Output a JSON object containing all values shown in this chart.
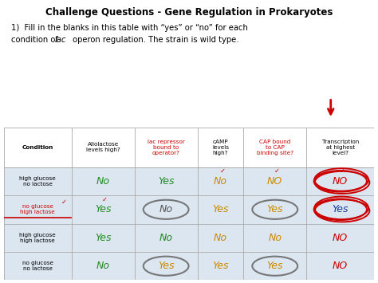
{
  "title": "Challenge Questions - Gene Regulation in Prokaryotes",
  "subtitle1": "1)  Fill in the blanks in this table with “yes” or “no” for each",
  "subtitle2_plain1": "condition of ",
  "subtitle2_italic": "lac",
  "subtitle2_plain2": " operon regulation. The strain is wild type.",
  "bg_color": "#dce6f0",
  "white": "#ffffff",
  "col_headers": [
    "Condition",
    "Allolactose\nlevels high?",
    "lac repressor\nbound to\noperator?",
    "cAMP\nlevels\nhigh?",
    "CAP bound\nto CAP\nbinding site?",
    "Transcription\nat highest\nlevel?"
  ],
  "col_colors": [
    "black",
    "black",
    "#cc0000",
    "black",
    "#cc0000",
    "black"
  ],
  "col_widths": [
    1.4,
    1.3,
    1.3,
    0.95,
    1.3,
    1.4
  ],
  "rows": [
    {
      "condition": "high glucose\nno lactose",
      "condition_color": "black",
      "condition_underline": false,
      "values": [
        "No",
        "Yes",
        "No",
        "NO",
        "NO"
      ],
      "colors": [
        "#228B22",
        "#228B22",
        "#cc8800",
        "#cc8800",
        "#cc0000"
      ],
      "gray_circle": [
        false,
        false,
        false,
        false,
        false
      ],
      "red_circle": [
        false,
        false,
        false,
        false,
        true
      ],
      "red_check": [
        false,
        false,
        true,
        true,
        true
      ]
    },
    {
      "condition": "no glucose\nhigh lactose",
      "condition_color": "#cc0000",
      "condition_underline": true,
      "values": [
        "Yes",
        "No",
        "Yes",
        "Yes",
        "Yes"
      ],
      "colors": [
        "#228B22",
        "#555555",
        "#cc8800",
        "#cc8800",
        "#1a3a99"
      ],
      "gray_circle": [
        false,
        true,
        false,
        true,
        false
      ],
      "red_circle": [
        false,
        false,
        false,
        false,
        true
      ],
      "red_check": [
        true,
        false,
        false,
        false,
        false
      ]
    },
    {
      "condition": "high glucose\nhigh lactose",
      "condition_color": "black",
      "condition_underline": false,
      "values": [
        "Yes",
        "No",
        "No",
        "No",
        "NO"
      ],
      "colors": [
        "#228B22",
        "#228B22",
        "#cc8800",
        "#cc8800",
        "#cc0000"
      ],
      "gray_circle": [
        false,
        false,
        false,
        false,
        false
      ],
      "red_circle": [
        false,
        false,
        false,
        false,
        false
      ],
      "red_check": [
        false,
        false,
        false,
        false,
        false
      ]
    },
    {
      "condition": "no glucose\nno lactose",
      "condition_color": "black",
      "condition_underline": false,
      "values": [
        "No",
        "Yes",
        "Yes",
        "Yes",
        "NO"
      ],
      "colors": [
        "#228B22",
        "#cc8800",
        "#cc8800",
        "#cc8800",
        "#cc0000"
      ],
      "gray_circle": [
        false,
        true,
        false,
        true,
        false
      ],
      "red_circle": [
        false,
        false,
        false,
        false,
        false
      ],
      "red_check": [
        false,
        false,
        false,
        false,
        false
      ]
    }
  ]
}
